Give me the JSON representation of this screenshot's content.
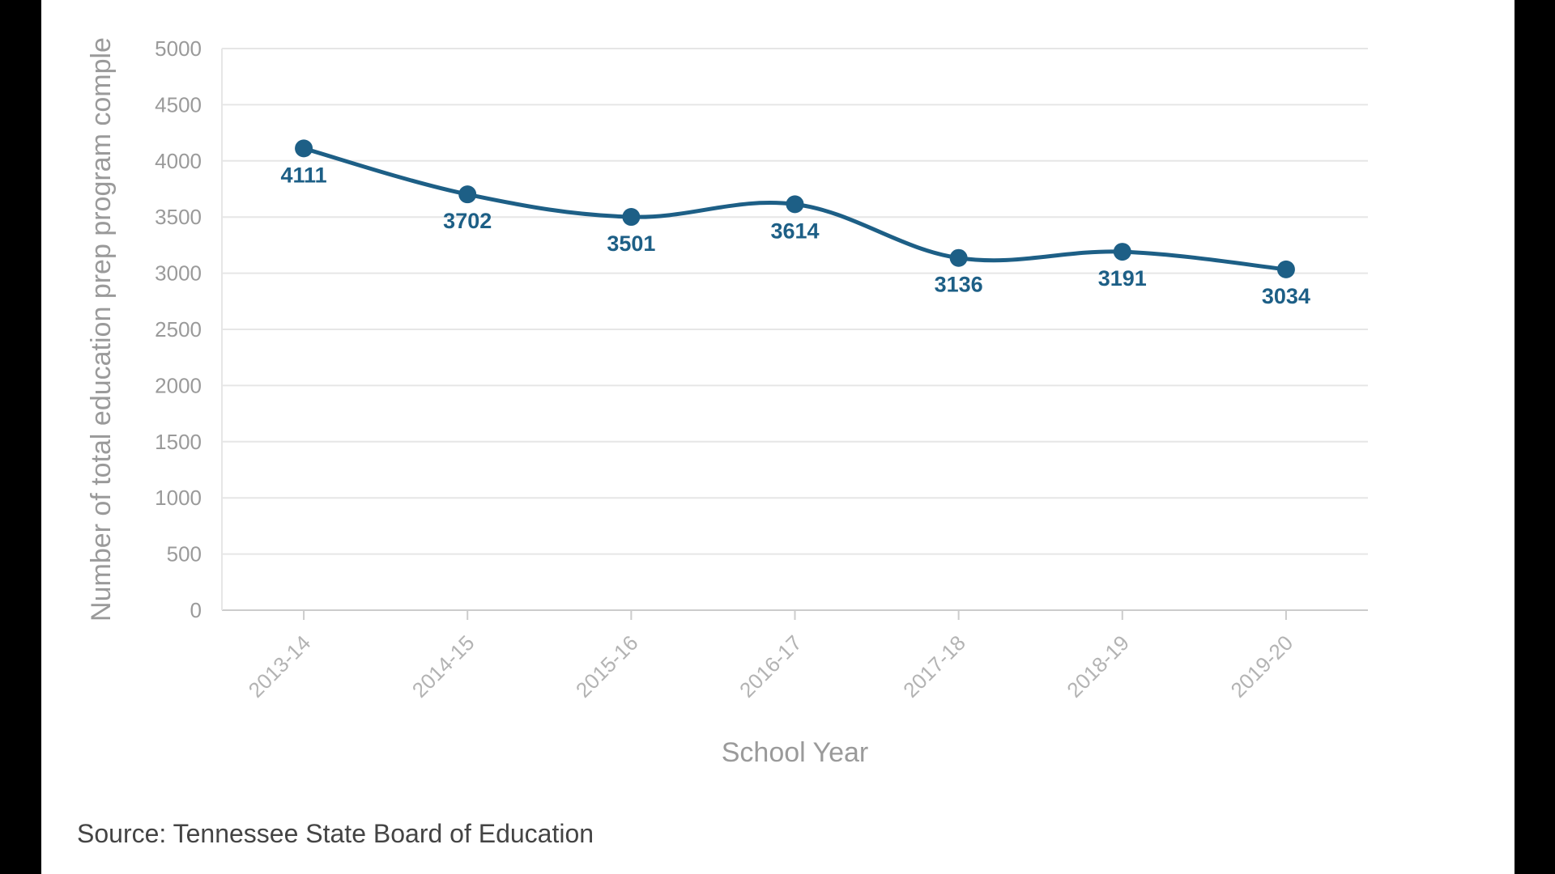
{
  "chart_data": {
    "type": "line",
    "categories": [
      "2013-14",
      "2014-15",
      "2015-16",
      "2016-17",
      "2017-18",
      "2018-19",
      "2019-20"
    ],
    "series": [
      {
        "values": [
          4111,
          3702,
          3501,
          3614,
          3136,
          3191,
          3034
        ]
      }
    ],
    "data_labels": [
      "4111",
      "3702",
      "3501",
      "3614",
      "3136",
      "3191",
      "3034"
    ],
    "yticks": [
      0,
      500,
      1000,
      1500,
      2000,
      2500,
      3000,
      3500,
      4000,
      4500,
      5000
    ],
    "ylim": [
      0,
      5000
    ],
    "xlabel": "School Year",
    "ylabel": "Number of total education prep program comple",
    "grid": true,
    "colors": {
      "line": "#1d5f86",
      "grid": "#e6e6e6",
      "axis": "#cccccc"
    }
  },
  "source": "Source: Tennessee State Board of Education"
}
